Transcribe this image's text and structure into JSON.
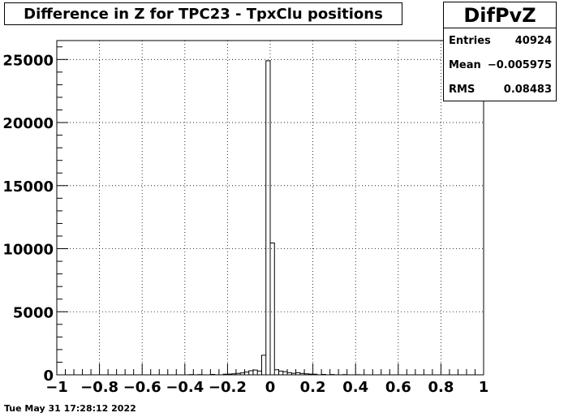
{
  "title": "Difference in Z for TPC23 - TpxClu positions",
  "stats": {
    "name": "DifPvZ",
    "rows": [
      {
        "label": "Entries",
        "value": "40924"
      },
      {
        "label": "Mean",
        "value": "−0.005975"
      },
      {
        "label": "RMS",
        "value": "0.08483"
      }
    ]
  },
  "footer": "Tue May 31 17:28:12 2022",
  "chart_data": {
    "type": "bar",
    "xlim": [
      -1,
      1
    ],
    "ylim": [
      0,
      26500
    ],
    "grid": true,
    "x_ticks": [
      -1,
      -0.8,
      -0.6,
      -0.4,
      -0.2,
      0,
      0.2,
      0.4,
      0.6,
      0.8,
      1
    ],
    "x_tick_labels": [
      "−1",
      "−0.8",
      "−0.6",
      "−0.4",
      "−0.2",
      "0",
      "0.2",
      "0.4",
      "0.6",
      "0.8",
      "1"
    ],
    "y_ticks": [
      0,
      5000,
      10000,
      15000,
      20000,
      25000
    ],
    "y_tick_labels": [
      "0",
      "5000",
      "10000",
      "15000",
      "20000",
      "25000"
    ],
    "bin_edges_range": [
      -1,
      1
    ],
    "bin_count": 100,
    "bins": [
      {
        "x": -0.37,
        "y": 15
      },
      {
        "x": -0.33,
        "y": 20
      },
      {
        "x": -0.27,
        "y": 30
      },
      {
        "x": -0.21,
        "y": 45
      },
      {
        "x": -0.19,
        "y": 60
      },
      {
        "x": -0.17,
        "y": 80
      },
      {
        "x": -0.15,
        "y": 110
      },
      {
        "x": -0.13,
        "y": 150
      },
      {
        "x": -0.11,
        "y": 220
      },
      {
        "x": -0.09,
        "y": 320
      },
      {
        "x": -0.07,
        "y": 380
      },
      {
        "x": -0.05,
        "y": 300
      },
      {
        "x": -0.03,
        "y": 1550
      },
      {
        "x": -0.01,
        "y": 24900
      },
      {
        "x": 0.01,
        "y": 10450
      },
      {
        "x": 0.03,
        "y": 400
      },
      {
        "x": 0.05,
        "y": 300
      },
      {
        "x": 0.07,
        "y": 250
      },
      {
        "x": 0.09,
        "y": 170
      },
      {
        "x": 0.11,
        "y": 120
      },
      {
        "x": 0.13,
        "y": 170
      },
      {
        "x": 0.15,
        "y": 110
      },
      {
        "x": 0.17,
        "y": 80
      },
      {
        "x": 0.19,
        "y": 60
      },
      {
        "x": 0.21,
        "y": 50
      },
      {
        "x": 0.25,
        "y": 35
      },
      {
        "x": 0.29,
        "y": 25
      },
      {
        "x": 0.35,
        "y": 15
      },
      {
        "x": 0.41,
        "y": 10
      }
    ]
  }
}
